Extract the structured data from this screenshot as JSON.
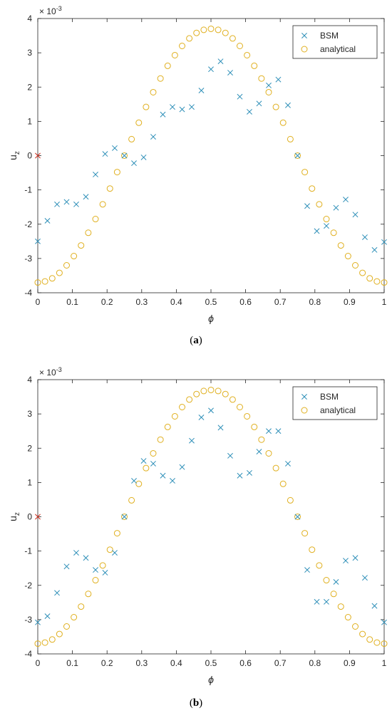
{
  "panels": [
    {
      "label_open": "(",
      "label_letter": "a",
      "label_close": ")"
    },
    {
      "label_open": "(",
      "label_letter": "b",
      "label_close": ")"
    }
  ],
  "colors": {
    "bsm": "#2e8fb8",
    "analytical": "#e0b020",
    "origin_marker": "#d03020",
    "axis": "#262626"
  },
  "chart_data": [
    {
      "type": "scatter",
      "title": "",
      "xlabel": "ϕ",
      "ylabel_base": "u",
      "ylabel_sub": "z",
      "exponent_base": "× 10",
      "exponent_power": "-3",
      "xlim": [
        0,
        1
      ],
      "ylim": [
        -4,
        4
      ],
      "xticks": [
        0,
        0.1,
        0.2,
        0.3,
        0.4,
        0.5,
        0.6,
        0.7,
        0.8,
        0.9,
        1
      ],
      "xtick_labels": [
        "0",
        "0.1",
        "0.2",
        "0.3",
        "0.4",
        "0.5",
        "0.6",
        "0.7",
        "0.8",
        "0.9",
        "1"
      ],
      "yticks": [
        -4,
        -3,
        -2,
        -1,
        0,
        1,
        2,
        3,
        4
      ],
      "ytick_labels": [
        "-4",
        "-3",
        "-2",
        "-1",
        "0",
        "1",
        "2",
        "3",
        "4"
      ],
      "grid": false,
      "legend_position": "top-right",
      "origin_marker": [
        0,
        0
      ],
      "series": [
        {
          "name": "BSM",
          "marker": "x",
          "x": [
            0,
            0.0278,
            0.0556,
            0.0833,
            0.1111,
            0.1389,
            0.1667,
            0.1944,
            0.2222,
            0.25,
            0.2778,
            0.3056,
            0.3333,
            0.3611,
            0.3889,
            0.4167,
            0.4444,
            0.4722,
            0.5,
            0.5278,
            0.5556,
            0.5833,
            0.6111,
            0.6389,
            0.6667,
            0.6944,
            0.7222,
            0.75,
            0.7778,
            0.8056,
            0.8333,
            0.8611,
            0.8889,
            0.9167,
            0.9444,
            0.9722,
            1
          ],
          "y": [
            -2.5,
            -1.9,
            -1.42,
            -1.35,
            -1.42,
            -1.2,
            -0.55,
            0.05,
            0.22,
            0.0,
            -0.22,
            -0.05,
            0.55,
            1.2,
            1.42,
            1.35,
            1.42,
            1.9,
            2.52,
            2.75,
            2.42,
            1.72,
            1.28,
            1.52,
            2.05,
            2.22,
            1.47,
            0.0,
            -1.47,
            -2.2,
            -2.05,
            -1.52,
            -1.28,
            -1.72,
            -2.38,
            -2.75,
            -2.52
          ]
        },
        {
          "name": "analytical",
          "marker": "o",
          "x": [
            0,
            0.0208,
            0.0417,
            0.0625,
            0.0833,
            0.1042,
            0.125,
            0.1458,
            0.1667,
            0.1875,
            0.2083,
            0.2292,
            0.25,
            0.2708,
            0.2917,
            0.3125,
            0.3333,
            0.3542,
            0.375,
            0.3958,
            0.4167,
            0.4375,
            0.4583,
            0.4792,
            0.5,
            0.5208,
            0.5417,
            0.5625,
            0.5833,
            0.6042,
            0.625,
            0.6458,
            0.6667,
            0.6875,
            0.7083,
            0.7292,
            0.75,
            0.7708,
            0.7917,
            0.8125,
            0.8333,
            0.8542,
            0.875,
            0.8958,
            0.9167,
            0.9375,
            0.9583,
            0.9792,
            1
          ],
          "y": [
            -3.7,
            -3.67,
            -3.58,
            -3.42,
            -3.2,
            -2.93,
            -2.62,
            -2.25,
            -1.85,
            -1.42,
            -0.96,
            -0.48,
            0.0,
            0.48,
            0.96,
            1.42,
            1.85,
            2.25,
            2.62,
            2.93,
            3.2,
            3.42,
            3.58,
            3.67,
            3.7,
            3.67,
            3.58,
            3.42,
            3.2,
            2.93,
            2.62,
            2.25,
            1.85,
            1.42,
            0.96,
            0.48,
            0.0,
            -0.48,
            -0.96,
            -1.42,
            -1.85,
            -2.25,
            -2.62,
            -2.93,
            -3.2,
            -3.42,
            -3.58,
            -3.67,
            -3.7
          ]
        }
      ]
    },
    {
      "type": "scatter",
      "title": "",
      "xlabel": "ϕ",
      "ylabel_base": "u",
      "ylabel_sub": "z",
      "exponent_base": "× 10",
      "exponent_power": "-3",
      "xlim": [
        0,
        1
      ],
      "ylim": [
        -4,
        4
      ],
      "xticks": [
        0,
        0.1,
        0.2,
        0.3,
        0.4,
        0.5,
        0.6,
        0.7,
        0.8,
        0.9,
        1
      ],
      "xtick_labels": [
        "0",
        "0.1",
        "0.2",
        "0.3",
        "0.4",
        "0.5",
        "0.6",
        "0.7",
        "0.8",
        "0.9",
        "1"
      ],
      "yticks": [
        -4,
        -3,
        -2,
        -1,
        0,
        1,
        2,
        3,
        4
      ],
      "ytick_labels": [
        "-4",
        "-3",
        "-2",
        "-1",
        "0",
        "1",
        "2",
        "3",
        "4"
      ],
      "grid": false,
      "legend_position": "top-right",
      "origin_marker": [
        0,
        0
      ],
      "series": [
        {
          "name": "BSM",
          "marker": "x",
          "x": [
            0,
            0.0278,
            0.0556,
            0.0833,
            0.1111,
            0.1389,
            0.1667,
            0.1944,
            0.2222,
            0.25,
            0.2778,
            0.3056,
            0.3333,
            0.3611,
            0.3889,
            0.4167,
            0.4444,
            0.4722,
            0.5,
            0.5278,
            0.5556,
            0.5833,
            0.6111,
            0.6389,
            0.6667,
            0.6944,
            0.7222,
            0.75,
            0.7778,
            0.8056,
            0.8333,
            0.8611,
            0.8889,
            0.9167,
            0.9444,
            0.9722,
            1
          ],
          "y": [
            -3.08,
            -2.9,
            -2.22,
            -1.45,
            -1.05,
            -1.2,
            -1.55,
            -1.63,
            -1.05,
            0.0,
            1.05,
            1.63,
            1.55,
            1.2,
            1.05,
            1.45,
            2.22,
            2.9,
            3.1,
            2.6,
            1.78,
            1.2,
            1.28,
            1.9,
            2.5,
            2.5,
            1.55,
            0.0,
            -1.55,
            -2.48,
            -2.48,
            -1.9,
            -1.28,
            -1.2,
            -1.78,
            -2.6,
            -3.08
          ]
        },
        {
          "name": "analytical",
          "marker": "o",
          "x": [
            0,
            0.0208,
            0.0417,
            0.0625,
            0.0833,
            0.1042,
            0.125,
            0.1458,
            0.1667,
            0.1875,
            0.2083,
            0.2292,
            0.25,
            0.2708,
            0.2917,
            0.3125,
            0.3333,
            0.3542,
            0.375,
            0.3958,
            0.4167,
            0.4375,
            0.4583,
            0.4792,
            0.5,
            0.5208,
            0.5417,
            0.5625,
            0.5833,
            0.6042,
            0.625,
            0.6458,
            0.6667,
            0.6875,
            0.7083,
            0.7292,
            0.75,
            0.7708,
            0.7917,
            0.8125,
            0.8333,
            0.8542,
            0.875,
            0.8958,
            0.9167,
            0.9375,
            0.9583,
            0.9792,
            1
          ],
          "y": [
            -3.7,
            -3.67,
            -3.58,
            -3.42,
            -3.2,
            -2.93,
            -2.62,
            -2.25,
            -1.85,
            -1.42,
            -0.96,
            -0.48,
            0.0,
            0.48,
            0.96,
            1.42,
            1.85,
            2.25,
            2.62,
            2.93,
            3.2,
            3.42,
            3.58,
            3.67,
            3.7,
            3.67,
            3.58,
            3.42,
            3.2,
            2.93,
            2.62,
            2.25,
            1.85,
            1.42,
            0.96,
            0.48,
            0.0,
            -0.48,
            -0.96,
            -1.42,
            -1.85,
            -2.25,
            -2.62,
            -2.93,
            -3.2,
            -3.42,
            -3.58,
            -3.67,
            -3.7
          ]
        }
      ]
    }
  ]
}
